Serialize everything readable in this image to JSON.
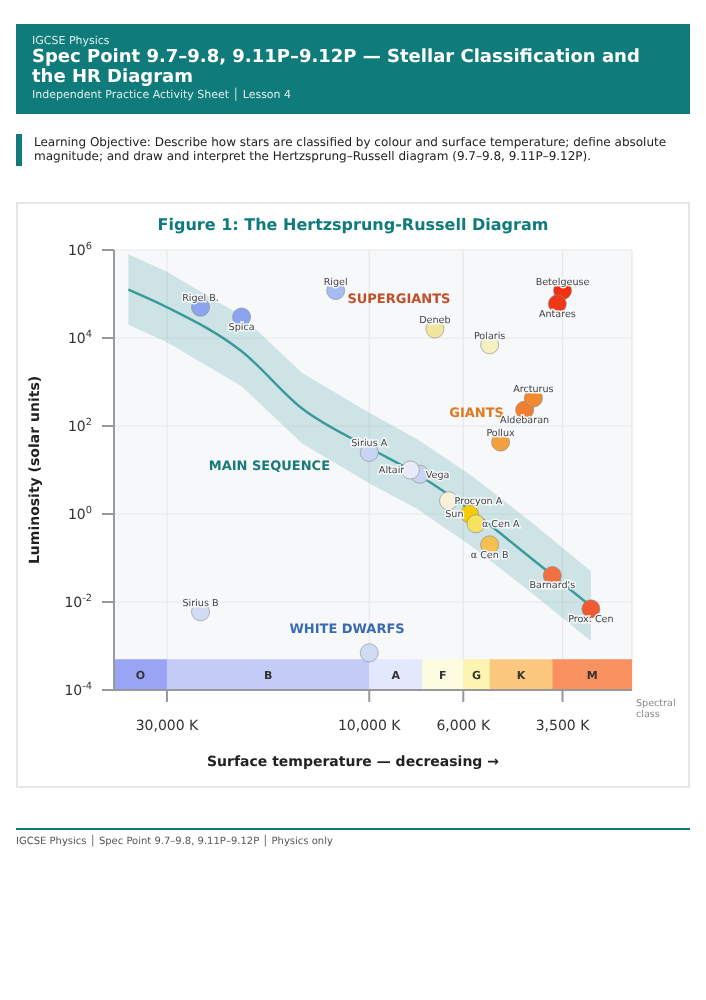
{
  "chart_data": {
    "type": "scatter",
    "title": "Figure 1: The Hertzsprung-Russell Diagram",
    "xlabel": "Surface temperature — decreasing →",
    "ylabel": "Luminosity (solar units)",
    "log": "xy",
    "grid": true,
    "marker": "circle",
    "xlim": [
      40000,
      2400
    ],
    "xticks": [
      {
        "value": 30000,
        "label": "30,000 K"
      },
      {
        "value": 10000,
        "label": "10,000 K"
      },
      {
        "value": 6000,
        "label": "6,000 K"
      },
      {
        "value": 3500,
        "label": "3,500 K"
      }
    ],
    "ylim": [
      0.0001,
      1000000
    ],
    "yticks": [
      {
        "value": 0.0001,
        "label": "10$^{-4}$"
      },
      {
        "value": 0.01,
        "label": "10$^{-2}$"
      },
      {
        "value": 1,
        "label": "10$^{0}$"
      },
      {
        "value": 100,
        "label": "10$^{2}$"
      },
      {
        "value": 10000,
        "label": "10$^{4}$"
      },
      {
        "value": 1000000,
        "label": "10$^{6}$"
      }
    ],
    "series": [
      {
        "type": "line",
        "marker": "none",
        "color": "#3a9a9a",
        "x": [
          37000,
          30000,
          20000,
          14400,
          10000,
          7700,
          5800,
          4100,
          3000
        ],
        "values": [
          126000,
          50000,
          5000,
          250,
          32,
          8,
          1.26,
          0.09,
          0.008
        ],
        "lower": [
          20000,
          8000,
          800,
          40,
          5,
          1.3,
          0.2,
          0.015,
          0.0013
        ],
        "upper": [
          800000,
          320000,
          32000,
          1600,
          200,
          50,
          8,
          0.6,
          0.05
        ]
      },
      {
        "x": [
          25000,
          20000,
          12000,
          7000,
          5200,
          3500,
          3600,
          4300,
          4100,
          4900,
          10000,
          7600,
          8000,
          6500,
          5800,
          5600,
          5200,
          3700,
          3000,
          25000,
          10000
        ],
        "values": [
          50000,
          30000,
          120000,
          16000,
          7000,
          120000,
          60000,
          230,
          430,
          43,
          25,
          8,
          10,
          2,
          1,
          0.6,
          0.2,
          0.04,
          0.007,
          0.006,
          0.0007
        ],
        "colors": [
          "#8aa4f0",
          "#8aa4f0",
          "#a8bcf4",
          "#f0e6a0",
          "#f4f0c0",
          "#f03010",
          "#f03818",
          "#f08030",
          "#f08a30",
          "#f4a040",
          "#c8d4f4",
          "#c8d4f4",
          "#e8ecf8",
          "#f8f0d8",
          "#f5cc00",
          "#f8e060",
          "#f4c050",
          "#f07040",
          "#f05a30",
          "#d0dcf4",
          "#d0dcf4"
        ]
      }
    ],
    "bands": [
      {
        "axis": "x",
        "from": 40000,
        "to": 30000,
        "label": "O",
        "color": "#9aa4f4"
      },
      {
        "axis": "x",
        "from": 30000,
        "to": 10000,
        "label": "B",
        "color": "#c4ccf8"
      },
      {
        "axis": "x",
        "from": 10000,
        "to": 7500,
        "label": "A",
        "color": "#e4e8fc"
      },
      {
        "axis": "x",
        "from": 7500,
        "to": 6000,
        "label": "F",
        "color": "#fcfce0"
      },
      {
        "axis": "x",
        "from": 6000,
        "to": 5200,
        "label": "G",
        "color": "#fcf4b0"
      },
      {
        "axis": "x",
        "from": 5200,
        "to": 3700,
        "label": "K",
        "color": "#fcc880"
      },
      {
        "axis": "x",
        "from": 3700,
        "to": 2400,
        "label": "M",
        "color": "#f89060"
      }
    ],
    "annotations": [
      "IGCSE Physics",
      "Spec Point 9.7–9.8, 9.11P–9.12P — Stellar Classification and the HR Diagram",
      "Independent Practice Activity Sheet │ Lesson 4",
      "Learning Objective: Describe how stars are classified by colour and surface temperature; define absolute magnitude; and draw and interpret the Hertzsprung–Russell diagram (9.7–9.8, 9.11P–9.12P).",
      "Spectral class",
      "IGCSE Physics │ Spec Point 9.7–9.8, 9.11P–9.12P │ Physics only",
      {
        "text": "Rigel B.",
        "x": 25000,
        "y": 50000
      },
      {
        "text": "Spica",
        "x": 20000,
        "y": 30000
      },
      {
        "text": "Rigel",
        "x": 12000,
        "y": 120000
      },
      {
        "text": "Deneb",
        "x": 7000,
        "y": 16000
      },
      {
        "text": "Polaris",
        "x": 5200,
        "y": 7000
      },
      {
        "text": "Betelgeuse",
        "x": 3500,
        "y": 120000
      },
      {
        "text": "Antares",
        "x": 3600,
        "y": 60000
      },
      {
        "text": "Aldebaran",
        "x": 4300,
        "y": 230
      },
      {
        "text": "Arcturus",
        "x": 4100,
        "y": 430
      },
      {
        "text": "Pollux",
        "x": 4900,
        "y": 43
      },
      {
        "text": "Sirius A",
        "x": 10000,
        "y": 25
      },
      {
        "text": "Vega",
        "x": 7600,
        "y": 8
      },
      {
        "text": "Altair",
        "x": 8000,
        "y": 10
      },
      {
        "text": "Procyon A",
        "x": 6500,
        "y": 2
      },
      {
        "text": "Sun",
        "x": 5800,
        "y": 1
      },
      {
        "text": "α Cen A",
        "x": 5600,
        "y": 0.6
      },
      {
        "text": "α Cen B",
        "x": 5200,
        "y": 0.2
      },
      {
        "text": "Barnard's",
        "x": 3700,
        "y": 0.04
      },
      {
        "text": "Prox. Cen",
        "x": 3000,
        "y": 0.007
      },
      {
        "text": "Sirius B",
        "x": 25000,
        "y": 0.006
      },
      "SUPERGIANTS",
      "GIANTS",
      "MAIN SEQUENCE",
      "WHITE DWARFS"
    ]
  }
}
